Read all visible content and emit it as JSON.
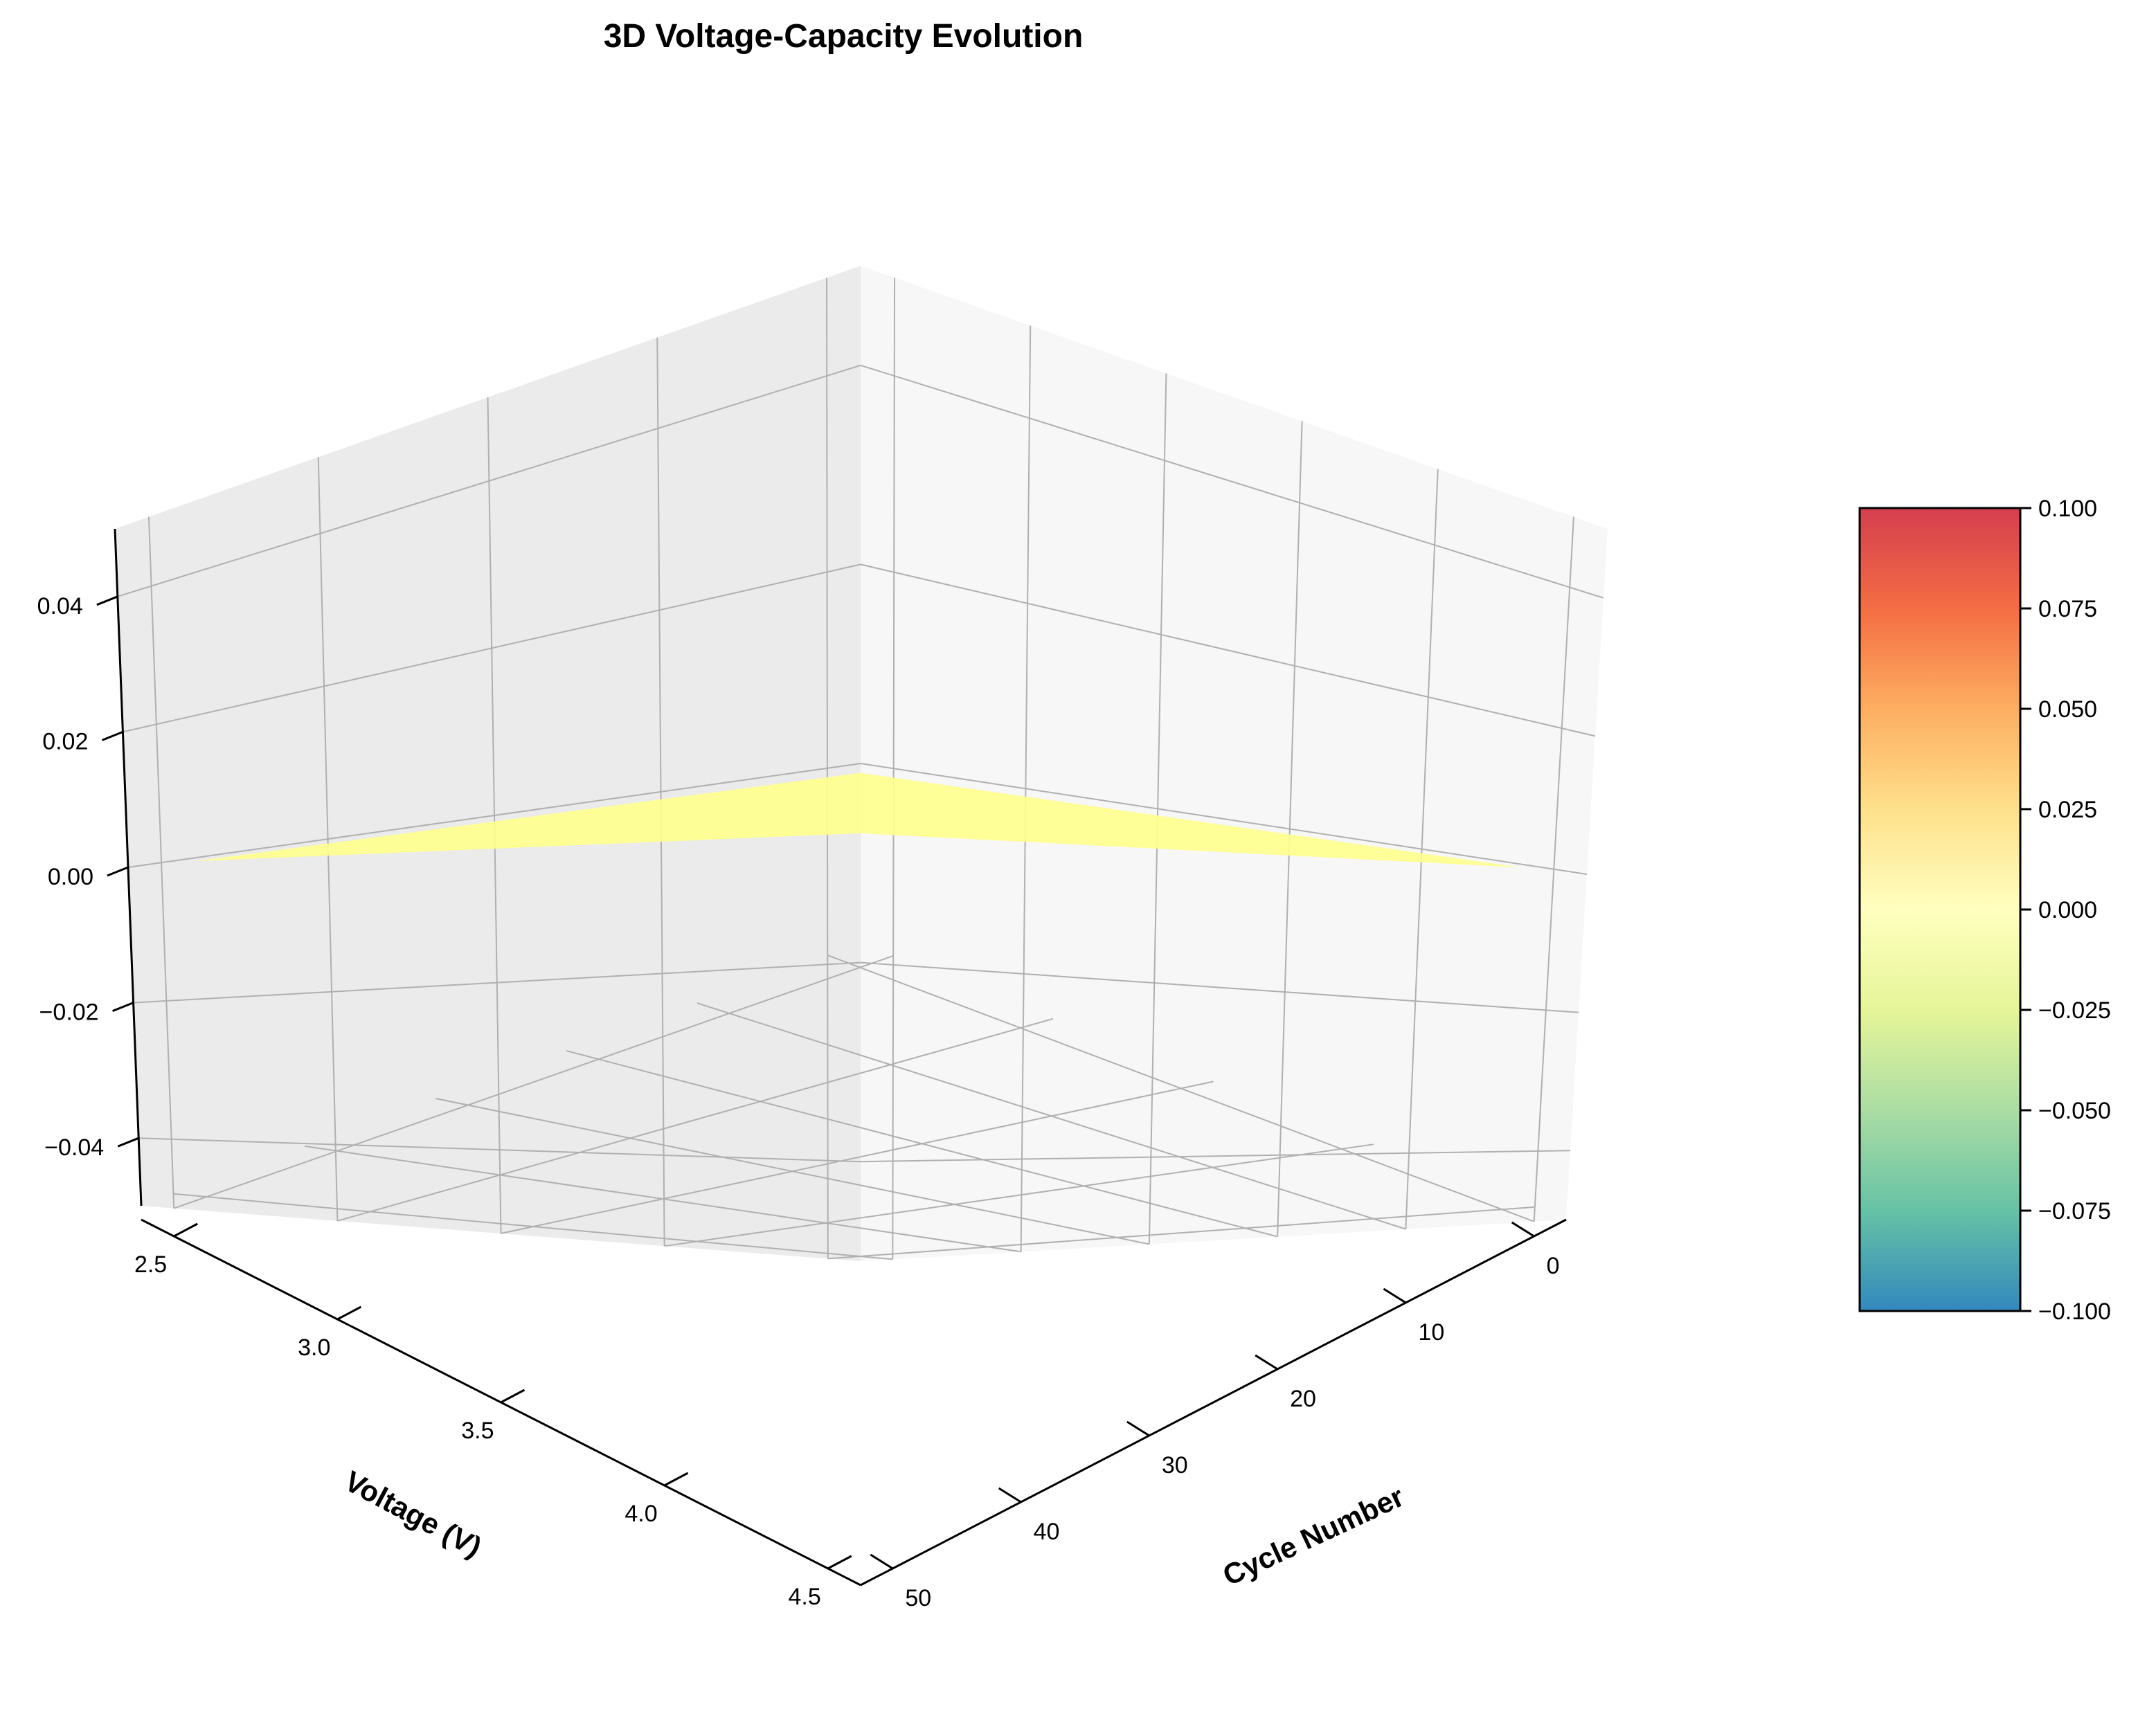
{
  "chart_data": {
    "type": "surface3d",
    "title": "3D Voltage-Capacity Evolution",
    "xlabel": "Cycle Number",
    "ylabel": "Voltage (V)",
    "zlabel": "",
    "x_ticks": [
      0,
      10,
      20,
      30,
      40,
      50
    ],
    "y_ticks": [
      2.5,
      3.0,
      3.5,
      4.0,
      4.5
    ],
    "z_ticks": [
      -0.04,
      -0.02,
      0.0,
      0.02,
      0.04
    ],
    "x_tick_labels": [
      "0",
      "10",
      "20",
      "30",
      "40",
      "50"
    ],
    "y_tick_labels": [
      "2.5",
      "3.0",
      "3.5",
      "4.0",
      "4.5"
    ],
    "z_tick_labels": [
      "−0.04",
      "−0.02",
      "0.00",
      "0.02",
      "0.04"
    ],
    "xlim": [
      -2.5,
      52.5
    ],
    "ylim": [
      2.4,
      4.6
    ],
    "zlim": [
      -0.05,
      0.05
    ],
    "surface": {
      "x_range": [
        0,
        50
      ],
      "y_range": [
        2.5,
        4.5
      ],
      "z_value": 0.0,
      "color": "#ffff8f"
    },
    "colorbar": {
      "colormap": "Spectral_r",
      "min": -0.1,
      "max": 0.1,
      "ticks": [
        0.1,
        0.075,
        0.05,
        0.025,
        0.0,
        -0.025,
        -0.05,
        -0.075,
        -0.1
      ],
      "tick_labels": [
        "0.100",
        "0.075",
        "0.050",
        "0.025",
        "0.000",
        "−0.025",
        "−0.050",
        "−0.075",
        "−0.100"
      ],
      "colors": [
        "#d53e4f",
        "#f46d43",
        "#fdae61",
        "#fee08b",
        "#ffffbf",
        "#e6f598",
        "#abdda4",
        "#66c2a5",
        "#3288bd"
      ]
    },
    "grid": true,
    "pane_colors": [
      "#f2f2f2",
      "#f7f7f7",
      "#ebebeb"
    ]
  }
}
